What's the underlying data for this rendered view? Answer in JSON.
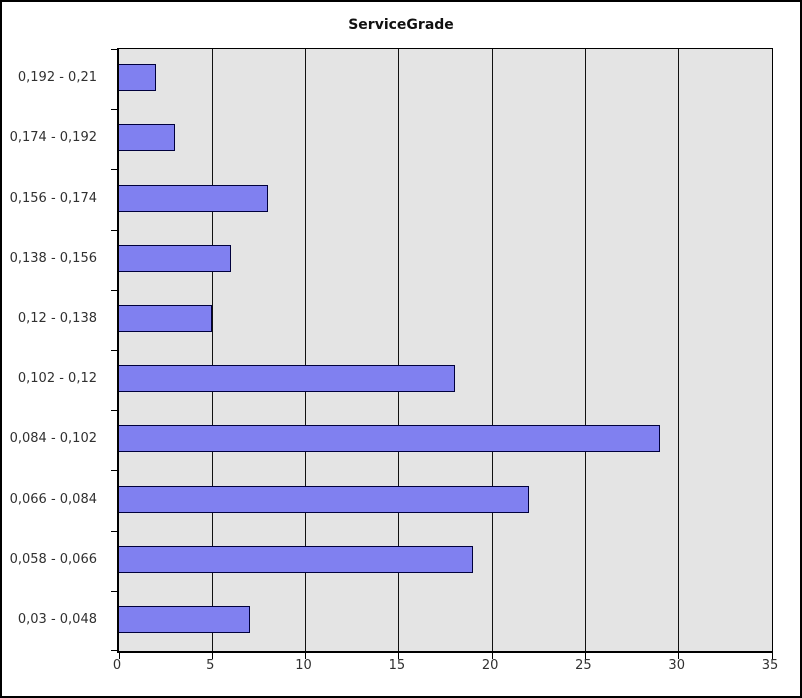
{
  "chart_data": {
    "type": "bar",
    "orientation": "horizontal",
    "title": "ServiceGrade",
    "categories": [
      "0,192 - 0,21",
      "0,174 - 0,192",
      "0,156 - 0,174",
      "0,138 - 0,156",
      "0,12 - 0,138",
      "0,102 - 0,12",
      "0,084 - 0,102",
      "0,066 - 0,084",
      "0,058 - 0,066",
      "0,03 - 0,048"
    ],
    "values": [
      2,
      3,
      8,
      6,
      5,
      18,
      29,
      22,
      19,
      7
    ],
    "xlabel": "",
    "ylabel": "",
    "xlim": [
      0,
      35
    ],
    "x_ticks": [
      0,
      5,
      10,
      15,
      20,
      25,
      30,
      35
    ],
    "grid": "vertical",
    "legend": "none",
    "colors": {
      "page_bg": "#ffffff",
      "frame": "#000000",
      "plot_bg": "#e4e4e4",
      "grid_line": "#111111",
      "bar_fill": "#8080f0",
      "bar_border": "#00003c",
      "axis": "#000000",
      "text": "#303030",
      "title_text": "#111111"
    }
  }
}
